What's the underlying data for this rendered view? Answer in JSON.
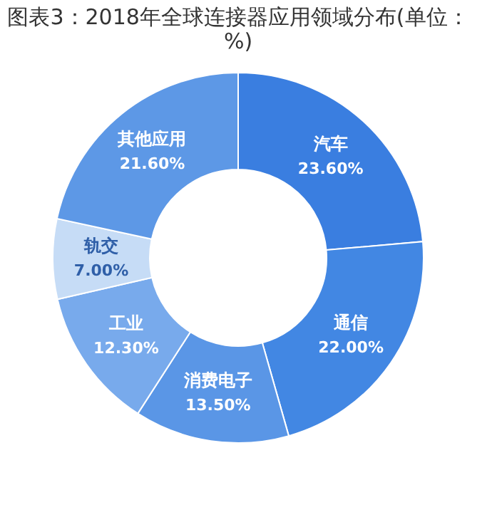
{
  "chart_data": {
    "type": "donut",
    "title": "图表3：2018年全球连接器应用领域分布(单位：%)",
    "categories": [
      "汽车",
      "通信",
      "消费电子",
      "工业",
      "轨交",
      "其他应用"
    ],
    "values": [
      23.6,
      22.0,
      13.5,
      12.3,
      7.0,
      21.6
    ],
    "value_labels": [
      "23.60%",
      "22.00%",
      "13.50%",
      "12.30%",
      "7.00%",
      "21.60%"
    ],
    "colors": [
      "#3a7ee0",
      "#4287e3",
      "#5a96e6",
      "#78aaec",
      "#c6dcf6",
      "#5d98e6"
    ],
    "legend": false
  }
}
